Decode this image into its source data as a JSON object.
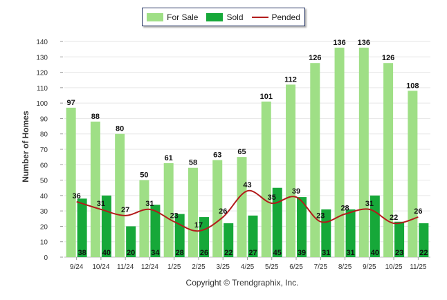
{
  "chart_data": {
    "type": "bar",
    "categories": [
      "9/24",
      "10/24",
      "11/24",
      "12/24",
      "1/25",
      "2/25",
      "3/25",
      "4/25",
      "5/25",
      "6/25",
      "7/25",
      "8/25",
      "9/25",
      "10/25",
      "11/25"
    ],
    "series": [
      {
        "name": "For Sale",
        "kind": "bar",
        "color": "#9fdf86",
        "values": [
          97,
          88,
          80,
          50,
          61,
          58,
          63,
          65,
          101,
          112,
          126,
          136,
          136,
          126,
          108
        ]
      },
      {
        "name": "Sold",
        "kind": "bar",
        "color": "#16a839",
        "values": [
          38,
          40,
          20,
          34,
          28,
          26,
          22,
          27,
          45,
          39,
          31,
          31,
          40,
          23,
          22
        ]
      },
      {
        "name": "Pended",
        "kind": "line",
        "color": "#b31b1b",
        "values": [
          36,
          31,
          27,
          31,
          23,
          17,
          26,
          43,
          35,
          39,
          23,
          28,
          31,
          22,
          26
        ]
      }
    ],
    "ylabel": "Number of Homes",
    "ylim": [
      0,
      140
    ],
    "yticks": [
      0,
      10,
      20,
      30,
      40,
      50,
      60,
      70,
      80,
      90,
      100,
      110,
      120,
      130,
      140
    ],
    "grid": true,
    "legend_position": "top-center"
  },
  "footer": {
    "copyright": "Copyright © Trendgraphix, Inc."
  }
}
